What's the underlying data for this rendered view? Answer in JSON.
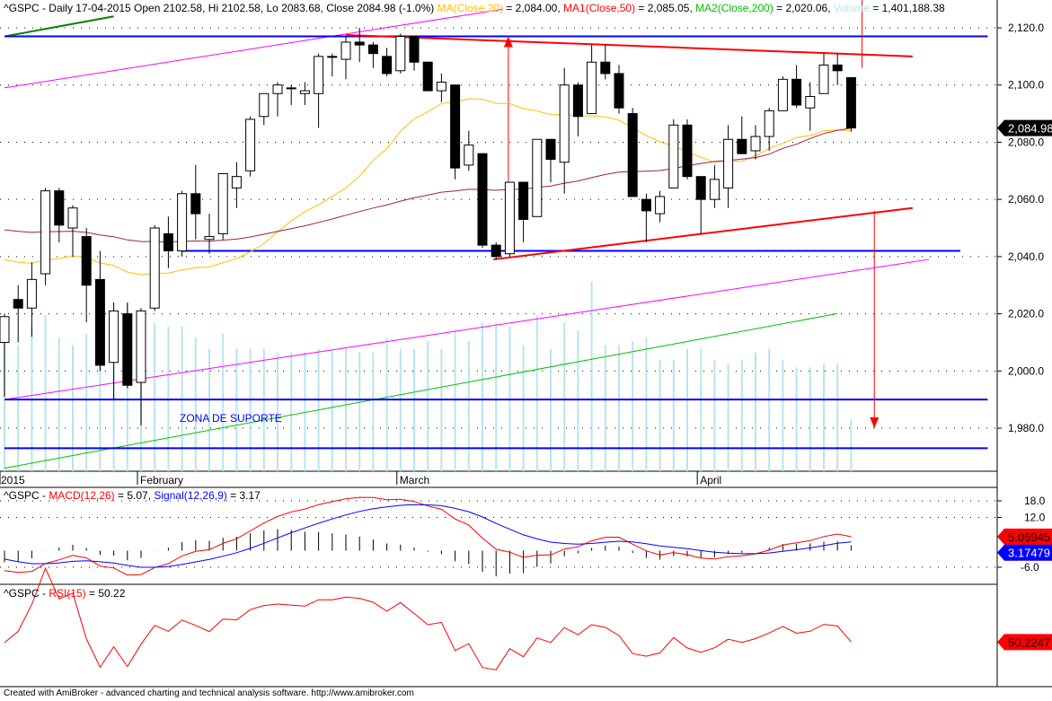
{
  "header": {
    "symbol": "^GSPC - Daily 17-04-2015",
    "ohlc": " Open 2102.58, Hi 2102.58, Lo 2083.68, Close 2084.98 (-1.0%) ",
    "ma20_label": "MA(Close,20)",
    "ma20_val": " = 2,084.00, ",
    "ma50_label": "MA1(Close,50)",
    "ma50_val": " = 2,085.05, ",
    "ma200_label": "MA2(Close,200)",
    "ma200_val": " = 2,020.06, ",
    "vol_label": "Volume",
    "vol_val": " = 1,401,188.38"
  },
  "macd_header": {
    "prefix": "^GSPC - ",
    "macd_label": "MACD(12,26)",
    "macd_val": " = 5.07, ",
    "signal_label": "Signal(12,26,9)",
    "signal_val": " = 3.17"
  },
  "rsi_header": {
    "prefix": "^GSPC - ",
    "rsi_label": "RSI(15)",
    "rsi_val": " = 50.22"
  },
  "footer": "Created with AmiBroker - advanced charting and technical analysis software. http://www.amibroker.com",
  "colors": {
    "ma20": "#ffc000",
    "ma50": "#a0204a",
    "ma200": "#00c000",
    "volume": "#b8e4f0",
    "macd": "#ff0000",
    "signal": "#0000ff",
    "rsi": "#ff0000",
    "support": "#0000ff",
    "trend": "#ff0000",
    "channel": "#ff00ff"
  },
  "chart_data": {
    "type": "candlestick",
    "title": "^GSPC Daily",
    "x_labels": [
      {
        "index": 0,
        "label": "2015"
      },
      {
        "index": 10,
        "label": "February"
      },
      {
        "index": 29,
        "label": "March"
      },
      {
        "index": 51,
        "label": "April"
      }
    ],
    "y_ticks": [
      1980,
      2000,
      2020,
      2040,
      2060,
      2080,
      2100,
      2120
    ],
    "ylim": [
      1965,
      2130
    ],
    "last_price_label": "2,084.98",
    "ohlc": [
      [
        2010,
        2020,
        1991,
        2019
      ],
      [
        2025,
        2030,
        2010,
        2022
      ],
      [
        2022,
        2038,
        2012,
        2032
      ],
      [
        2034,
        2064,
        2030,
        2063
      ],
      [
        2063,
        2064,
        2045,
        2051
      ],
      [
        2050,
        2058,
        2040,
        2057
      ],
      [
        2047,
        2050,
        2017,
        2030
      ],
      [
        2032,
        2042,
        2000,
        2002
      ],
      [
        2003,
        2024,
        1990,
        2021
      ],
      [
        2020,
        2024,
        1994,
        1995
      ],
      [
        1996,
        2022,
        1981,
        2021
      ],
      [
        2022,
        2051,
        2021,
        2050
      ],
      [
        2048,
        2054,
        2036,
        2042
      ],
      [
        2042,
        2063,
        2040,
        2062
      ],
      [
        2062,
        2072,
        2046,
        2055
      ],
      [
        2046,
        2055,
        2041,
        2047
      ],
      [
        2048,
        2069,
        2046,
        2069
      ],
      [
        2064,
        2073,
        2057,
        2068
      ],
      [
        2070,
        2089,
        2068,
        2088
      ],
      [
        2089,
        2097,
        2086,
        2097
      ],
      [
        2097,
        2101,
        2089,
        2100
      ],
      [
        2099,
        2100,
        2093,
        2099
      ],
      [
        2097,
        2101,
        2093,
        2098
      ],
      [
        2097,
        2111,
        2085,
        2110
      ],
      [
        2110,
        2111,
        2103,
        2110
      ],
      [
        2109,
        2117,
        2102,
        2115
      ],
      [
        2115,
        2120,
        2108,
        2114
      ],
      [
        2114,
        2115,
        2106,
        2111
      ],
      [
        2110,
        2113,
        2103,
        2104
      ],
      [
        2105,
        2118,
        2104,
        2117
      ],
      [
        2117,
        2117,
        2105,
        2108
      ],
      [
        2108,
        2108,
        2098,
        2098
      ],
      [
        2098,
        2104,
        2094,
        2101
      ],
      [
        2100,
        2100,
        2067,
        2071
      ],
      [
        2072,
        2084,
        2070,
        2079
      ],
      [
        2076,
        2076,
        2043,
        2044
      ],
      [
        2044,
        2045,
        2039,
        2040
      ],
      [
        2041,
        2066,
        2040,
        2066
      ],
      [
        2066,
        2066,
        2045,
        2053
      ],
      [
        2054,
        2081,
        2054,
        2081
      ],
      [
        2081,
        2081,
        2066,
        2074
      ],
      [
        2073,
        2106,
        2062,
        2100
      ],
      [
        2100,
        2101,
        2082,
        2089
      ],
      [
        2090,
        2114,
        2090,
        2108
      ],
      [
        2108,
        2114,
        2102,
        2104
      ],
      [
        2104,
        2107,
        2090,
        2092
      ],
      [
        2090,
        2092,
        2061,
        2061
      ],
      [
        2060,
        2062,
        2045,
        2056
      ],
      [
        2055,
        2063,
        2052,
        2061
      ],
      [
        2064,
        2088,
        2064,
        2086
      ],
      [
        2086,
        2088,
        2067,
        2068
      ],
      [
        2068,
        2068,
        2048,
        2060
      ],
      [
        2060,
        2072,
        2057,
        2067
      ],
      [
        2064,
        2086,
        2057,
        2081
      ],
      [
        2081,
        2089,
        2076,
        2076
      ],
      [
        2077,
        2086,
        2074,
        2082
      ],
      [
        2082,
        2092,
        2077,
        2091
      ],
      [
        2091,
        2103,
        2091,
        2102
      ],
      [
        2102,
        2107,
        2092,
        2093
      ],
      [
        2092,
        2101,
        2084,
        2096
      ],
      [
        2097,
        2111,
        2097,
        2107
      ],
      [
        2107,
        2111,
        2100,
        2105
      ],
      [
        2102.58,
        2102.58,
        2083.68,
        2084.98
      ]
    ],
    "volume_millions": [
      3.6,
      3.4,
      3.9,
      4.2,
      3.6,
      3.4,
      3.7,
      4.0,
      4.3,
      4.5,
      4.1,
      4.0,
      3.9,
      3.9,
      3.6,
      3.3,
      3.7,
      3.3,
      3.3,
      3.3,
      3.2,
      3.2,
      3.2,
      3.3,
      3.3,
      3.3,
      3.2,
      3.2,
      3.6,
      3.3,
      3.3,
      3.5,
      3.3,
      3.8,
      3.5,
      4.0,
      4.0,
      3.9,
      3.4,
      4.2,
      3.3,
      4.0,
      3.8,
      5.1,
      3.4,
      3.4,
      3.5,
      3.6,
      3.0,
      3.0,
      3.3,
      3.3,
      3.0,
      2.9,
      3.0,
      3.2,
      3.3,
      3.0,
      2.8,
      2.8,
      2.9,
      2.9,
      1.4
    ],
    "ma200_endpoints": [
      [
        0,
        1966
      ],
      [
        61,
        2020.06
      ]
    ],
    "annotations": {
      "support_lines": [
        {
          "price": 2117,
          "from": 0,
          "to": 72
        },
        {
          "price": 2042,
          "from": 13,
          "to": 70
        },
        {
          "price": 1990,
          "from": 0,
          "to": 72
        },
        {
          "price": 1973,
          "from": 0,
          "to": 72
        }
      ],
      "red_trendlines": [
        [
          [
            25,
            2117.5
          ],
          [
            66.5,
            2110
          ]
        ],
        [
          [
            35.8,
            2039
          ],
          [
            66.5,
            2057
          ]
        ]
      ],
      "magenta_channel": [
        [
          [
            0,
            2099
          ],
          [
            36.5,
            2126.5
          ]
        ],
        [
          [
            0,
            1990
          ],
          [
            67.7,
            2039
          ]
        ]
      ],
      "green_line": [
        [
          0,
          2117
        ],
        [
          8,
          2124
        ]
      ],
      "arrows": [
        {
          "x": 36.9,
          "from": 2042,
          "to": 2117,
          "dir": "up"
        },
        {
          "x": 63.7,
          "from": 2056,
          "to": 1980,
          "dir": "down"
        },
        {
          "x": 62.8,
          "from": 2130,
          "to": 2106,
          "dir": "line"
        }
      ],
      "zone_label": "ZONA DE SUPORTE"
    },
    "macd": {
      "ticks": [
        18,
        12,
        -6
      ],
      "last_macd": "5.06945",
      "last_signal": "3.17479"
    },
    "rsi": {
      "last": "50.2247"
    }
  }
}
